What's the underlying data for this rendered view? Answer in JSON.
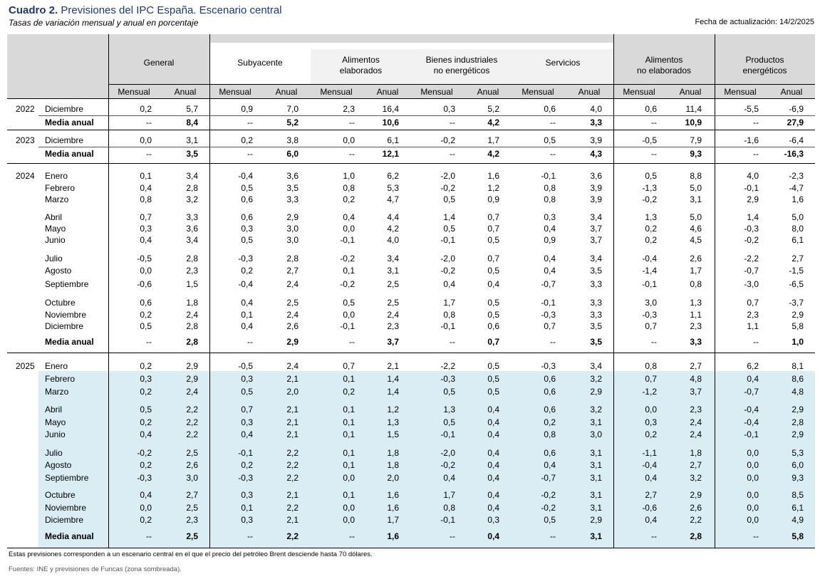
{
  "header": {
    "title_bold": "Cuadro 2.",
    "title_rest": "Previsiones del IPC España. Escenario central",
    "subtitle": "Tasas de variación mensual y anual  en porcentaje",
    "updated": "Fecha de actualización: 14/2/2025"
  },
  "columns": {
    "groups": [
      {
        "line1": "General",
        "line2": ""
      },
      {
        "line1": "Subyacente",
        "line2": ""
      },
      {
        "line1": "Alimentos",
        "line2": "elaborados"
      },
      {
        "line1": "Bienes industriales",
        "line2": "no energéticos"
      },
      {
        "line1": "Servicios",
        "line2": ""
      },
      {
        "line1": "Alimentos",
        "line2": "no elaborados"
      },
      {
        "line1": "Productos",
        "line2": "energéticos"
      }
    ],
    "sub": [
      "Mensual",
      "Anual"
    ]
  },
  "rows": [
    {
      "year": "2022",
      "label": "Diciembre",
      "bold": false,
      "values": [
        "0,2",
        "5,7",
        "0,9",
        "7,0",
        "2,3",
        "16,4",
        "0,3",
        "5,2",
        "0,6",
        "4,0",
        "0,6",
        "11,4",
        "-5,5",
        "-6,9"
      ]
    },
    {
      "year": "",
      "label": "Media anual",
      "bold": true,
      "values": [
        "--",
        "8,4",
        "--",
        "5,2",
        "--",
        "10,6",
        "--",
        "4,2",
        "--",
        "3,3",
        "--",
        "10,9",
        "--",
        "27,9"
      ]
    },
    {
      "year": "2023",
      "label": "Diciembre",
      "bold": false,
      "values": [
        "0,0",
        "3,1",
        "0,2",
        "3,8",
        "0,0",
        "6,1",
        "-0,2",
        "1,7",
        "0,5",
        "3,9",
        "-0,5",
        "7,9",
        "-1,6",
        "-6,4"
      ]
    },
    {
      "year": "",
      "label": "Media anual",
      "bold": true,
      "values": [
        "--",
        "3,5",
        "--",
        "6,0",
        "--",
        "12,1",
        "--",
        "4,2",
        "--",
        "4,3",
        "--",
        "9,3",
        "--",
        "-16,3"
      ]
    },
    {
      "year": "2024",
      "label": "Enero",
      "bold": false,
      "values": [
        "0,1",
        "3,4",
        "-0,4",
        "3,6",
        "1,0",
        "6,2",
        "-2,0",
        "1,6",
        "-0,1",
        "3,6",
        "0,5",
        "8,8",
        "4,0",
        "-2,3"
      ]
    },
    {
      "year": "",
      "label": "Febrero",
      "bold": false,
      "values": [
        "0,4",
        "2,8",
        "0,5",
        "3,5",
        "0,8",
        "5,3",
        "-0,2",
        "1,2",
        "0,8",
        "3,9",
        "-1,3",
        "5,0",
        "-0,1",
        "-4,7"
      ]
    },
    {
      "year": "",
      "label": "Marzo",
      "bold": false,
      "values": [
        "0,8",
        "3,2",
        "0,6",
        "3,3",
        "0,2",
        "4,7",
        "0,5",
        "0,9",
        "0,8",
        "3,9",
        "-0,2",
        "3,1",
        "2,9",
        "1,6"
      ]
    },
    {
      "year": "",
      "label": "Abril",
      "bold": false,
      "values": [
        "0,7",
        "3,3",
        "0,6",
        "2,9",
        "0,4",
        "4,4",
        "1,4",
        "0,7",
        "0,3",
        "3,4",
        "1,3",
        "5,0",
        "1,4",
        "5,0"
      ]
    },
    {
      "year": "",
      "label": "Mayo",
      "bold": false,
      "values": [
        "0,3",
        "3,6",
        "0,3",
        "3,0",
        "0,0",
        "4,2",
        "0,5",
        "0,7",
        "0,4",
        "3,7",
        "0,2",
        "4,6",
        "-0,3",
        "8,0"
      ]
    },
    {
      "year": "",
      "label": "Junio",
      "bold": false,
      "values": [
        "0,4",
        "3,4",
        "0,5",
        "3,0",
        "-0,1",
        "4,0",
        "-0,1",
        "0,5",
        "0,9",
        "3,7",
        "0,2",
        "4,5",
        "-0,2",
        "6,1"
      ]
    },
    {
      "year": "",
      "label": "Julio",
      "bold": false,
      "values": [
        "-0,5",
        "2,8",
        "-0,3",
        "2,8",
        "-0,2",
        "3,4",
        "-2,0",
        "0,7",
        "0,4",
        "3,4",
        "-0,4",
        "2,6",
        "-2,2",
        "2,7"
      ]
    },
    {
      "year": "",
      "label": "Agosto",
      "bold": false,
      "values": [
        "0,0",
        "2,3",
        "0,2",
        "2,7",
        "0,1",
        "3,1",
        "-0,2",
        "0,5",
        "0,4",
        "3,5",
        "-1,4",
        "1,7",
        "-0,7",
        "-1,5"
      ]
    },
    {
      "year": "",
      "label": "Septiembre",
      "bold": false,
      "values": [
        "-0,6",
        "1,5",
        "-0,4",
        "2,4",
        "-0,2",
        "2,5",
        "0,4",
        "0,4",
        "-0,7",
        "3,3",
        "-0,1",
        "0,8",
        "-3,0",
        "-6,5"
      ]
    },
    {
      "year": "",
      "label": "Octubre",
      "bold": false,
      "values": [
        "0,6",
        "1,8",
        "0,4",
        "2,5",
        "0,5",
        "2,5",
        "1,7",
        "0,5",
        "-0,1",
        "3,3",
        "3,0",
        "1,3",
        "0,7",
        "-3,7"
      ]
    },
    {
      "year": "",
      "label": "Noviembre",
      "bold": false,
      "values": [
        "0,2",
        "2,4",
        "0,1",
        "2,4",
        "0,0",
        "2,4",
        "0,8",
        "0,5",
        "-0,3",
        "3,3",
        "-0,3",
        "1,1",
        "2,3",
        "2,9"
      ]
    },
    {
      "year": "",
      "label": "Diciembre",
      "bold": false,
      "values": [
        "0,5",
        "2,8",
        "0,4",
        "2,6",
        "-0,1",
        "2,3",
        "-0,1",
        "0,6",
        "0,7",
        "3,5",
        "0,7",
        "2,3",
        "1,1",
        "5,8"
      ]
    },
    {
      "year": "",
      "label": "Media anual",
      "bold": true,
      "values": [
        "--",
        "2,8",
        "--",
        "2,9",
        "--",
        "3,7",
        "--",
        "0,7",
        "--",
        "3,5",
        "--",
        "3,3",
        "--",
        "1,0"
      ]
    },
    {
      "year": "2025",
      "label": "Enero",
      "bold": false,
      "values": [
        "0,2",
        "2,9",
        "-0,5",
        "2,4",
        "0,7",
        "2,1",
        "-2,2",
        "0,5",
        "-0,3",
        "3,4",
        "0,8",
        "2,7",
        "6,2",
        "8,1"
      ]
    },
    {
      "year": "",
      "label": "Febrero",
      "bold": false,
      "values": [
        "0,3",
        "2,9",
        "0,3",
        "2,1",
        "0,1",
        "1,4",
        "-0,3",
        "0,5",
        "0,6",
        "3,2",
        "0,7",
        "4,8",
        "0,4",
        "8,6"
      ]
    },
    {
      "year": "",
      "label": "Marzo",
      "bold": false,
      "values": [
        "0,2",
        "2,4",
        "0,5",
        "2,0",
        "0,2",
        "1,4",
        "0,5",
        "0,5",
        "0,6",
        "2,9",
        "-1,2",
        "3,7",
        "-0,7",
        "4,8"
      ]
    },
    {
      "year": "",
      "label": "Abril",
      "bold": false,
      "values": [
        "0,5",
        "2,2",
        "0,7",
        "2,1",
        "0,1",
        "1,2",
        "1,3",
        "0,4",
        "0,6",
        "3,2",
        "0,0",
        "2,3",
        "-0,4",
        "2,9"
      ]
    },
    {
      "year": "",
      "label": "Mayo",
      "bold": false,
      "values": [
        "0,2",
        "2,2",
        "0,3",
        "2,1",
        "0,1",
        "1,3",
        "0,5",
        "0,4",
        "0,2",
        "3,1",
        "0,3",
        "2,4",
        "-0,4",
        "2,8"
      ]
    },
    {
      "year": "",
      "label": "Junio",
      "bold": false,
      "values": [
        "0,4",
        "2,2",
        "0,4",
        "2,1",
        "0,1",
        "1,5",
        "-0,1",
        "0,4",
        "0,8",
        "3,0",
        "0,2",
        "2,4",
        "-0,1",
        "2,9"
      ]
    },
    {
      "year": "",
      "label": "Julio",
      "bold": false,
      "values": [
        "-0,2",
        "2,5",
        "-0,1",
        "2,2",
        "0,1",
        "1,8",
        "-2,0",
        "0,4",
        "0,6",
        "3,1",
        "-1,1",
        "1,8",
        "0,0",
        "5,3"
      ]
    },
    {
      "year": "",
      "label": "Agosto",
      "bold": false,
      "values": [
        "0,2",
        "2,6",
        "0,2",
        "2,2",
        "0,1",
        "1,8",
        "-0,2",
        "0,4",
        "0,4",
        "3,1",
        "-0,4",
        "2,7",
        "0,0",
        "6,0"
      ]
    },
    {
      "year": "",
      "label": "Septiembre",
      "bold": false,
      "values": [
        "-0,3",
        "3,0",
        "-0,3",
        "2,2",
        "0,0",
        "2,0",
        "0,4",
        "0,4",
        "-0,7",
        "3,1",
        "0,4",
        "3,2",
        "0,0",
        "9,3"
      ]
    },
    {
      "year": "",
      "label": "Octubre",
      "bold": false,
      "values": [
        "0,4",
        "2,7",
        "0,3",
        "2,1",
        "0,1",
        "1,6",
        "1,7",
        "0,4",
        "-0,2",
        "3,1",
        "2,7",
        "2,9",
        "0,0",
        "8,5"
      ]
    },
    {
      "year": "",
      "label": "Noviembre",
      "bold": false,
      "values": [
        "0,0",
        "2,5",
        "0,1",
        "2,2",
        "0,0",
        "1,6",
        "0,8",
        "0,4",
        "-0,2",
        "3,1",
        "-0,6",
        "2,6",
        "0,0",
        "6,1"
      ]
    },
    {
      "year": "",
      "label": "Diciembre",
      "bold": false,
      "values": [
        "0,2",
        "2,3",
        "0,3",
        "2,1",
        "0,0",
        "1,7",
        "-0,1",
        "0,3",
        "0,5",
        "2,9",
        "0,4",
        "2,2",
        "0,0",
        "4,9"
      ]
    },
    {
      "year": "",
      "label": "Media anual",
      "bold": true,
      "values": [
        "--",
        "2,5",
        "--",
        "2,2",
        "--",
        "1,6",
        "--",
        "0,4",
        "--",
        "3,1",
        "--",
        "2,8",
        "--",
        "5,8"
      ]
    }
  ],
  "footer": {
    "note": "Estas previsiones corresponden a un escenario central en el que el precio del petróleo Brent desciende hasta 70 dólares.",
    "source": "Fuentes: INE y previsiones de Funcas (zona sombreada)."
  },
  "colors": {
    "title": "#1f3a6e",
    "header_gray": "#d9d9d9",
    "header_light": "#f2f2f2",
    "forecast_shade": "#daedf4"
  }
}
